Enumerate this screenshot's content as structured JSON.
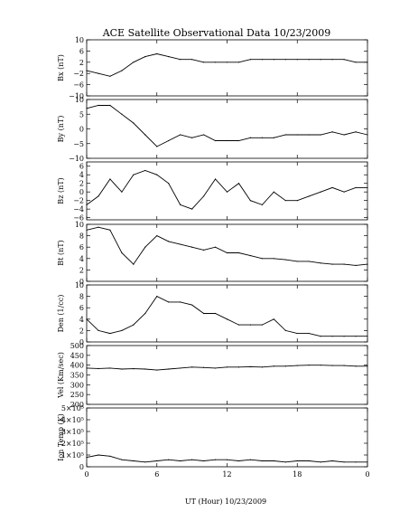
{
  "chart_data": {
    "title": "ACE Satellite Observational Data   10/23/2009",
    "xlabel": "UT (Hour)   10/23/2009",
    "x_ticks": [
      "0",
      "6",
      "12",
      "18",
      "0"
    ],
    "x_range": [
      0,
      24
    ],
    "panels": [
      {
        "type": "line",
        "ylabel": "Bx (nT)",
        "ylim": [
          -10,
          10
        ],
        "y_ticks": [
          {
            "v": 10,
            "t": "10"
          },
          {
            "v": 6,
            "t": "6"
          },
          {
            "v": 2,
            "t": "2"
          },
          {
            "v": -2,
            "t": "−2"
          },
          {
            "v": -6,
            "t": "−6"
          },
          {
            "v": -10,
            "t": "−10"
          }
        ],
        "x": [
          0,
          1,
          2,
          3,
          4,
          5,
          6,
          7,
          8,
          9,
          10,
          11,
          12,
          13,
          14,
          15,
          16,
          17,
          18,
          19,
          20,
          21,
          22,
          23,
          24
        ],
        "values": [
          -1,
          -2,
          -3,
          -1,
          2,
          4,
          5,
          4,
          3,
          3,
          2,
          2,
          2,
          2,
          3,
          3,
          3,
          3,
          3,
          3,
          3,
          3,
          3,
          2,
          2
        ]
      },
      {
        "type": "line",
        "ylabel": "By (nT)",
        "ylim": [
          -10,
          10
        ],
        "y_ticks": [
          {
            "v": 10,
            "t": "10"
          },
          {
            "v": 5,
            "t": "5"
          },
          {
            "v": 0,
            "t": "0"
          },
          {
            "v": -5,
            "t": "−5"
          },
          {
            "v": -10,
            "t": "−10"
          }
        ],
        "x": [
          0,
          1,
          2,
          3,
          4,
          5,
          6,
          7,
          8,
          9,
          10,
          11,
          12,
          13,
          14,
          15,
          16,
          17,
          18,
          19,
          20,
          21,
          22,
          23,
          24
        ],
        "values": [
          7,
          8,
          8,
          5,
          2,
          -2,
          -6,
          -4,
          -2,
          -3,
          -2,
          -4,
          -4,
          -4,
          -3,
          -3,
          -3,
          -2,
          -2,
          -2,
          -2,
          -1,
          -2,
          -1,
          -2
        ]
      },
      {
        "type": "line",
        "ylabel": "Bz (nT)",
        "ylim": [
          -6.5,
          7
        ],
        "y_ticks": [
          {
            "v": 6,
            "t": "6"
          },
          {
            "v": 4,
            "t": "4"
          },
          {
            "v": 2,
            "t": "2"
          },
          {
            "v": 0,
            "t": "0"
          },
          {
            "v": -2,
            "t": "−2"
          },
          {
            "v": -4,
            "t": "−4"
          },
          {
            "v": -6,
            "t": "−6"
          }
        ],
        "x": [
          0,
          1,
          2,
          3,
          4,
          5,
          6,
          7,
          8,
          9,
          10,
          11,
          12,
          13,
          14,
          15,
          16,
          17,
          18,
          19,
          20,
          21,
          22,
          23,
          24
        ],
        "values": [
          -3,
          -1,
          3,
          0,
          4,
          5,
          4,
          2,
          -3,
          -4,
          -1,
          3,
          0,
          2,
          -2,
          -3,
          0,
          -2,
          -2,
          -1,
          0,
          1,
          0,
          1,
          1
        ]
      },
      {
        "type": "line",
        "ylabel": "Bt (nT)",
        "ylim": [
          0,
          10
        ],
        "y_ticks": [
          {
            "v": 10,
            "t": "10"
          },
          {
            "v": 8,
            "t": "8"
          },
          {
            "v": 6,
            "t": "6"
          },
          {
            "v": 4,
            "t": "4"
          },
          {
            "v": 2,
            "t": "2"
          },
          {
            "v": 0,
            "t": "0"
          }
        ],
        "x": [
          0,
          1,
          2,
          3,
          4,
          5,
          6,
          7,
          8,
          9,
          10,
          11,
          12,
          13,
          14,
          15,
          16,
          17,
          18,
          19,
          20,
          21,
          22,
          23,
          24
        ],
        "values": [
          9,
          9.5,
          9,
          5,
          3,
          6,
          8,
          7,
          6.5,
          6,
          5.5,
          6,
          5,
          5,
          4.5,
          4,
          4,
          3.8,
          3.5,
          3.5,
          3.2,
          3,
          3,
          2.8,
          3
        ]
      },
      {
        "type": "line",
        "ylabel": "Den (1/cc)",
        "ylim": [
          0,
          10
        ],
        "y_ticks": [
          {
            "v": 10,
            "t": "10"
          },
          {
            "v": 8,
            "t": "8"
          },
          {
            "v": 6,
            "t": "6"
          },
          {
            "v": 4,
            "t": "4"
          },
          {
            "v": 2,
            "t": "2"
          },
          {
            "v": 0,
            "t": "0"
          }
        ],
        "x": [
          0,
          1,
          2,
          3,
          4,
          5,
          6,
          7,
          8,
          9,
          10,
          11,
          12,
          13,
          14,
          15,
          16,
          17,
          18,
          19,
          20,
          21,
          22,
          23,
          24
        ],
        "values": [
          4,
          2,
          1.5,
          2,
          3,
          5,
          8,
          7,
          7,
          6.5,
          5,
          5,
          4,
          3,
          3,
          3,
          4,
          2,
          1.5,
          1.5,
          1,
          1,
          1,
          1,
          1
        ]
      },
      {
        "type": "line",
        "ylabel": "Vel (Km/sec)",
        "ylim": [
          200,
          500
        ],
        "y_ticks": [
          {
            "v": 500,
            "t": "500"
          },
          {
            "v": 450,
            "t": "450"
          },
          {
            "v": 400,
            "t": "400"
          },
          {
            "v": 350,
            "t": "350"
          },
          {
            "v": 300,
            "t": "300"
          },
          {
            "v": 250,
            "t": "250"
          },
          {
            "v": 200,
            "t": "200"
          }
        ],
        "x": [
          0,
          1,
          2,
          3,
          4,
          5,
          6,
          7,
          8,
          9,
          10,
          11,
          12,
          13,
          14,
          15,
          16,
          17,
          18,
          19,
          20,
          21,
          22,
          23,
          24
        ],
        "values": [
          385,
          383,
          385,
          380,
          382,
          380,
          375,
          380,
          385,
          390,
          388,
          385,
          390,
          390,
          392,
          390,
          395,
          395,
          398,
          400,
          400,
          398,
          398,
          395,
          395
        ]
      },
      {
        "type": "line",
        "ylabel": "Ion Temp (K)",
        "ylim": [
          0,
          500000
        ],
        "y_ticks": [
          {
            "v": 500000,
            "t": "5×10⁵"
          },
          {
            "v": 400000,
            "t": "4×10⁵"
          },
          {
            "v": 300000,
            "t": "3×10⁵"
          },
          {
            "v": 200000,
            "t": "2×10⁵"
          },
          {
            "v": 100000,
            "t": "1×10⁵"
          },
          {
            "v": 0,
            "t": "0"
          }
        ],
        "x": [
          0,
          1,
          2,
          3,
          4,
          5,
          6,
          7,
          8,
          9,
          10,
          11,
          12,
          13,
          14,
          15,
          16,
          17,
          18,
          19,
          20,
          21,
          22,
          23,
          24
        ],
        "values": [
          80000,
          100000,
          90000,
          60000,
          50000,
          40000,
          50000,
          60000,
          50000,
          60000,
          50000,
          60000,
          60000,
          50000,
          60000,
          50000,
          50000,
          40000,
          50000,
          50000,
          40000,
          50000,
          40000,
          40000,
          40000
        ]
      }
    ]
  }
}
